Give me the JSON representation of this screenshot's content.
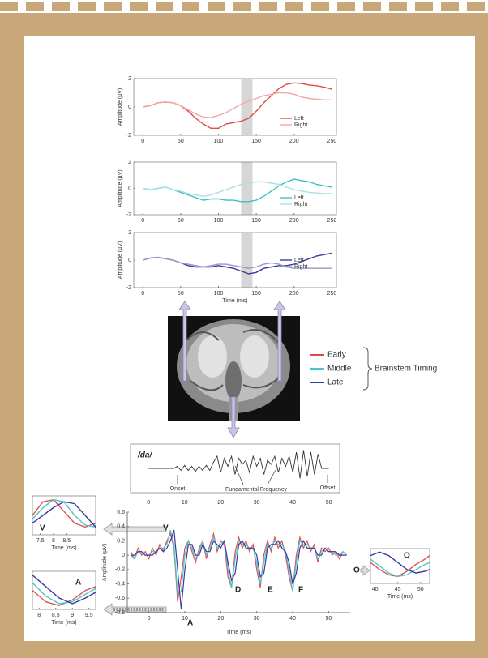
{
  "chart_data": [
    {
      "type": "line",
      "ylabel": "Amplitude (µV)",
      "x": [
        0,
        10,
        20,
        30,
        40,
        50,
        60,
        70,
        80,
        90,
        100,
        110,
        120,
        130,
        140,
        150,
        160,
        170,
        180,
        190,
        200,
        210,
        220,
        230,
        240,
        250
      ],
      "xlim": [
        -12,
        256
      ],
      "xticks": [
        0,
        50,
        100,
        150,
        200,
        250
      ],
      "ylim": [
        -2,
        2
      ],
      "yticks": [
        -2,
        0,
        2
      ],
      "shaded_region": [
        130,
        145
      ],
      "series": [
        {
          "name": "Left",
          "color": "#e04a44",
          "values": [
            0,
            0.1,
            0.3,
            0.35,
            0.3,
            0.1,
            -0.3,
            -0.8,
            -1.2,
            -1.5,
            -1.5,
            -1.2,
            -1.1,
            -1.0,
            -0.8,
            -0.3,
            0.3,
            0.8,
            1.3,
            1.6,
            1.7,
            1.65,
            1.55,
            1.5,
            1.4,
            1.25
          ]
        },
        {
          "name": "Right",
          "color": "#f2a6a6",
          "values": [
            0,
            0.1,
            0.3,
            0.35,
            0.3,
            0.1,
            -0.2,
            -0.5,
            -0.7,
            -0.75,
            -0.6,
            -0.4,
            -0.1,
            0.2,
            0.4,
            0.6,
            0.8,
            0.9,
            1.0,
            1.0,
            0.9,
            0.7,
            0.6,
            0.55,
            0.5,
            0.5
          ]
        }
      ]
    },
    {
      "type": "line",
      "ylabel": "Amplitude (µV)",
      "x": [
        0,
        10,
        20,
        30,
        40,
        50,
        60,
        70,
        80,
        90,
        100,
        110,
        120,
        130,
        140,
        150,
        160,
        170,
        180,
        190,
        200,
        210,
        220,
        230,
        240,
        250
      ],
      "xlim": [
        -12,
        256
      ],
      "xticks": [
        0,
        50,
        100,
        150,
        200,
        250
      ],
      "ylim": [
        -2,
        2
      ],
      "yticks": [
        -2,
        0,
        2
      ],
      "shaded_region": [
        130,
        145
      ],
      "series": [
        {
          "name": "Left",
          "color": "#3fbfc4",
          "values": [
            0,
            -0.1,
            0,
            0.1,
            -0.1,
            -0.3,
            -0.5,
            -0.7,
            -0.9,
            -0.8,
            -0.8,
            -0.9,
            -0.9,
            -1.0,
            -1.0,
            -0.9,
            -0.6,
            -0.2,
            0.2,
            0.5,
            0.7,
            0.6,
            0.5,
            0.3,
            0.2,
            0.1
          ]
        },
        {
          "name": "Right",
          "color": "#a6e2e4",
          "values": [
            0,
            -0.1,
            0,
            0.1,
            -0.1,
            -0.2,
            -0.4,
            -0.5,
            -0.6,
            -0.5,
            -0.3,
            -0.1,
            0.1,
            0.3,
            0.4,
            0.5,
            0.5,
            0.4,
            0.3,
            0.1,
            -0.1,
            -0.2,
            -0.3,
            -0.35,
            -0.4,
            -0.4
          ]
        }
      ]
    },
    {
      "type": "line",
      "ylabel": "Amplitude (µV)",
      "xlabel": "Time (ms)",
      "x": [
        0,
        10,
        20,
        30,
        40,
        50,
        60,
        70,
        80,
        90,
        100,
        110,
        120,
        130,
        140,
        150,
        160,
        170,
        180,
        190,
        200,
        210,
        220,
        230,
        240,
        250
      ],
      "xlim": [
        -12,
        256
      ],
      "xticks": [
        0,
        50,
        100,
        150,
        200,
        250
      ],
      "ylim": [
        -2,
        2
      ],
      "yticks": [
        -2,
        0,
        2
      ],
      "shaded_region": [
        130,
        145
      ],
      "series": [
        {
          "name": "Left",
          "color": "#3c3c9c",
          "values": [
            0,
            0.15,
            0.2,
            0.1,
            0,
            -0.2,
            -0.4,
            -0.5,
            -0.5,
            -0.5,
            -0.4,
            -0.5,
            -0.6,
            -0.8,
            -1.0,
            -0.9,
            -0.6,
            -0.5,
            -0.4,
            -0.4,
            -0.3,
            -0.1,
            0.1,
            0.3,
            0.4,
            0.5
          ]
        },
        {
          "name": "Right",
          "color": "#9a96cc",
          "values": [
            0,
            0.15,
            0.2,
            0.1,
            0,
            -0.2,
            -0.3,
            -0.4,
            -0.5,
            -0.4,
            -0.3,
            -0.3,
            -0.4,
            -0.5,
            -0.6,
            -0.5,
            -0.3,
            -0.2,
            -0.3,
            -0.5,
            -0.6,
            -0.6,
            -0.6,
            -0.6,
            -0.6,
            -0.6
          ]
        }
      ]
    },
    {
      "type": "line",
      "title": "/da/",
      "color": "#333333",
      "x": [
        0,
        1,
        2,
        3,
        4,
        5,
        6,
        7,
        8,
        9,
        10,
        11,
        12,
        13,
        14,
        15,
        16,
        17,
        18,
        19,
        20,
        21,
        22,
        23,
        24,
        25,
        26,
        27,
        28,
        29,
        30,
        31,
        32,
        33,
        34,
        35,
        36,
        37,
        38,
        39,
        40,
        41,
        42,
        43,
        44,
        45,
        46,
        47,
        48,
        49,
        50
      ],
      "values": [
        0,
        0,
        0,
        0,
        0,
        0,
        0,
        0,
        0.1,
        -0.1,
        0.15,
        -0.1,
        0.1,
        -0.15,
        0.1,
        -0.1,
        0.15,
        -0.1,
        0.3,
        0.6,
        -0.2,
        0.5,
        0.1,
        0.6,
        -0.3,
        0.5,
        0.2,
        0.4,
        -0.2,
        0.6,
        0.1,
        0.5,
        -0.3,
        0.4,
        0.2,
        0.6,
        -0.2,
        0.5,
        0.1,
        0.6,
        -0.2,
        0.8,
        -0.5,
        0.9,
        -0.4,
        0.8,
        -0.3,
        0.7,
        0,
        0,
        0
      ],
      "xlim": [
        -5,
        53
      ],
      "xticks": [
        0,
        10,
        20,
        30,
        40,
        50
      ],
      "ylim": [
        -1.2,
        1.2
      ],
      "annotations": [
        "Onset",
        "Fundamental Frequency",
        "Offset"
      ]
    },
    {
      "type": "line",
      "ylabel": "Amplitude (µV)",
      "xlabel": "Time (ms)",
      "x": [
        -5,
        -4,
        -3,
        -2,
        -1,
        0,
        1,
        2,
        3,
        4,
        5,
        6,
        7,
        8,
        9,
        10,
        11,
        12,
        13,
        14,
        15,
        16,
        17,
        18,
        19,
        20,
        21,
        22,
        23,
        24,
        25,
        26,
        27,
        28,
        29,
        30,
        31,
        32,
        33,
        34,
        35,
        36,
        37,
        38,
        39,
        40,
        41,
        42,
        43,
        44,
        45,
        46,
        47,
        48,
        49,
        50,
        51,
        52,
        53,
        54,
        55
      ],
      "xlim": [
        -6,
        56
      ],
      "xticks": [
        0,
        10,
        20,
        30,
        40,
        50
      ],
      "ylim": [
        -0.8,
        0.6
      ],
      "yticks": [
        -0.8,
        -0.6,
        -0.4,
        -0.2,
        0,
        0.2,
        0.4,
        0.6
      ],
      "series": [
        {
          "color": "#e05252",
          "values": [
            0.05,
            -0.05,
            0.1,
            0,
            0.05,
            -0.05,
            0.1,
            0,
            0.15,
            0.05,
            0.2,
            0.3,
            0.1,
            -0.65,
            -0.3,
            0.1,
            0.2,
            0.05,
            -0.1,
            0.1,
            0.2,
            -0.05,
            0.15,
            0.3,
            0.05,
            0.2,
            0.15,
            -0.3,
            -0.45,
            0.05,
            0.25,
            0.1,
            0.2,
            0.05,
            0.15,
            -0.2,
            -0.45,
            0,
            0.2,
            0.05,
            0.25,
            0.1,
            0.2,
            0,
            -0.3,
            -0.5,
            0,
            0.25,
            0.1,
            0.2,
            0.05,
            0.15,
            -0.1,
            0.1,
            0.05,
            0.1,
            0,
            0.05,
            -0.05,
            0.05,
            0
          ]
        },
        {
          "color": "#4cc6ca",
          "values": [
            0,
            -0.05,
            0.05,
            0.05,
            0,
            0,
            0.05,
            0.05,
            0.1,
            0.1,
            0.15,
            0.35,
            0.15,
            -0.55,
            -0.5,
            0,
            0.2,
            0.1,
            -0.05,
            0.05,
            0.2,
            0,
            0.1,
            0.25,
            0.1,
            0.15,
            0.2,
            -0.2,
            -0.45,
            -0.05,
            0.2,
            0.15,
            0.15,
            0.1,
            0.1,
            -0.1,
            -0.4,
            -0.1,
            0.15,
            0.1,
            0.2,
            0.15,
            0.15,
            0.05,
            -0.2,
            -0.5,
            -0.1,
            0.2,
            0.15,
            0.15,
            0.1,
            0.1,
            -0.05,
            0.05,
            0.1,
            0.05,
            0.05,
            0,
            0,
            0.05,
            0
          ]
        },
        {
          "color": "#3a3a9c",
          "values": [
            0,
            0,
            0.05,
            0.05,
            0,
            0,
            0,
            0.05,
            0.1,
            0.05,
            0.1,
            0.2,
            0.35,
            -0.2,
            -0.75,
            -0.2,
            0.15,
            0.15,
            0,
            0,
            0.15,
            0.05,
            0.05,
            0.2,
            0.15,
            0.1,
            0.2,
            -0.1,
            -0.35,
            -0.25,
            0.15,
            0.2,
            0.1,
            0.1,
            0.1,
            0,
            -0.3,
            -0.25,
            0.1,
            0.15,
            0.15,
            0.2,
            0.1,
            0.05,
            -0.1,
            -0.4,
            -0.25,
            0.1,
            0.2,
            0.1,
            0.1,
            0.1,
            0,
            0,
            0.1,
            0.05,
            0.05,
            0.05,
            0,
            0,
            0
          ]
        }
      ],
      "annotations": [
        "V",
        "A",
        "D",
        "E",
        "F",
        "O"
      ]
    },
    {
      "type": "line",
      "xlabel": "Time (ms)",
      "x": [
        7.2,
        7.6,
        8.0,
        8.4,
        8.8,
        9.2,
        9.6
      ],
      "xlim": [
        7.2,
        9.6
      ],
      "xticks": [
        7.5,
        8,
        8.5
      ],
      "ylim": [
        0,
        1
      ],
      "series": [
        {
          "color": "#e05252",
          "values": [
            0.5,
            0.85,
            0.9,
            0.6,
            0.3,
            0.2,
            0.3
          ]
        },
        {
          "color": "#4cc6ca",
          "values": [
            0.4,
            0.7,
            0.9,
            0.85,
            0.5,
            0.25,
            0.2
          ]
        },
        {
          "color": "#3a3a9c",
          "values": [
            0.3,
            0.5,
            0.7,
            0.85,
            0.8,
            0.5,
            0.2
          ]
        }
      ],
      "annotations": [
        "V"
      ]
    },
    {
      "type": "line",
      "xlabel": "Time (ms)",
      "x": [
        7.8,
        8.2,
        8.6,
        9.0,
        9.4,
        9.7
      ],
      "xlim": [
        7.8,
        9.7
      ],
      "xticks": [
        8,
        8.5,
        9,
        9.5
      ],
      "ylim": [
        0,
        1
      ],
      "series": [
        {
          "color": "#e05252",
          "values": [
            0.5,
            0.2,
            0.1,
            0.25,
            0.5,
            0.6
          ]
        },
        {
          "color": "#4cc6ca",
          "values": [
            0.7,
            0.35,
            0.15,
            0.2,
            0.4,
            0.55
          ]
        },
        {
          "color": "#3a3a9c",
          "values": [
            0.9,
            0.6,
            0.3,
            0.15,
            0.3,
            0.45
          ]
        }
      ],
      "annotations": [
        "A"
      ]
    },
    {
      "type": "line",
      "xlabel": "Time (ms)",
      "x": [
        39,
        41,
        43,
        45,
        47,
        49,
        51,
        52
      ],
      "xlim": [
        39,
        52
      ],
      "xticks": [
        40,
        45,
        50
      ],
      "ylim": [
        0,
        1
      ],
      "series": [
        {
          "color": "#e05252",
          "values": [
            0.6,
            0.4,
            0.25,
            0.2,
            0.35,
            0.55,
            0.7,
            0.8
          ]
        },
        {
          "color": "#4cc6ca",
          "values": [
            0.7,
            0.5,
            0.3,
            0.2,
            0.25,
            0.4,
            0.55,
            0.6
          ]
        },
        {
          "color": "#3a3a9c",
          "values": [
            0.8,
            0.9,
            0.8,
            0.6,
            0.4,
            0.3,
            0.35,
            0.4
          ]
        }
      ],
      "annotations": [
        "O"
      ]
    }
  ],
  "brainstem_legend": {
    "title": "Brainstem Timing",
    "entries": [
      {
        "label": "Early",
        "color": "#e04a44"
      },
      {
        "label": "Middle",
        "color": "#4cc6ca"
      },
      {
        "label": "Late",
        "color": "#3a3a9c"
      }
    ]
  }
}
